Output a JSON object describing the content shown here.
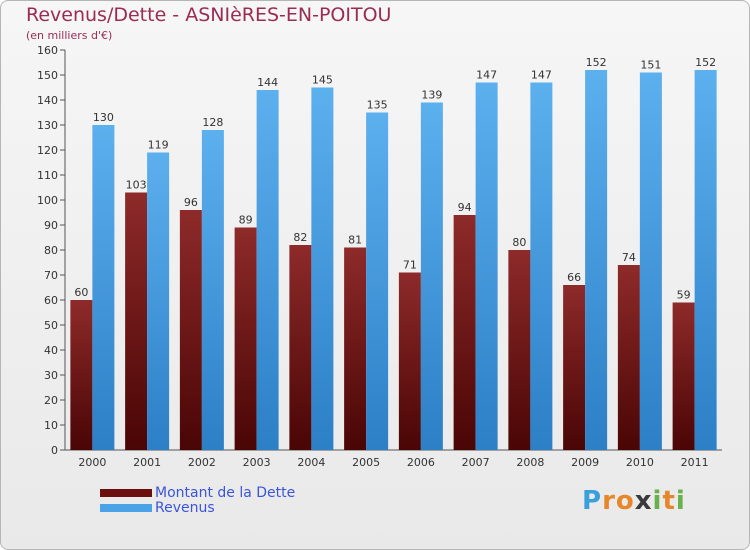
{
  "header": {
    "title": "Revenus/Dette - ASNIèRES-EN-POITOU",
    "subtitle": "(en milliers d'€)"
  },
  "chart_data": {
    "type": "bar",
    "categories": [
      "2000",
      "2001",
      "2002",
      "2003",
      "2004",
      "2005",
      "2006",
      "2007",
      "2008",
      "2009",
      "2010",
      "2011"
    ],
    "series": [
      {
        "name": "Montant de la Dette",
        "color": "#7a1a1a",
        "values": [
          60,
          103,
          96,
          89,
          82,
          81,
          71,
          94,
          80,
          66,
          74,
          59
        ]
      },
      {
        "name": "Revenus",
        "color": "#4aa3e6",
        "values": [
          130,
          119,
          128,
          144,
          145,
          135,
          139,
          147,
          147,
          152,
          151,
          152
        ]
      }
    ],
    "ylim": [
      0,
      160
    ],
    "ytick_step": 10,
    "grid": false,
    "legend_position": "bottom-left"
  },
  "legend": {
    "items": [
      {
        "label": "Montant de la Dette",
        "color": "#6b0f0f"
      },
      {
        "label": "Revenus",
        "color": "#4aa3e6"
      }
    ]
  },
  "brand": {
    "letters": [
      "P",
      "r",
      "o",
      "x",
      "i",
      "t",
      "i"
    ],
    "colors": [
      "#3aa0dc",
      "#e8862a",
      "#e8862a",
      "#3a3a3a",
      "#6ab04c",
      "#e8862a",
      "#6ab04c"
    ]
  }
}
